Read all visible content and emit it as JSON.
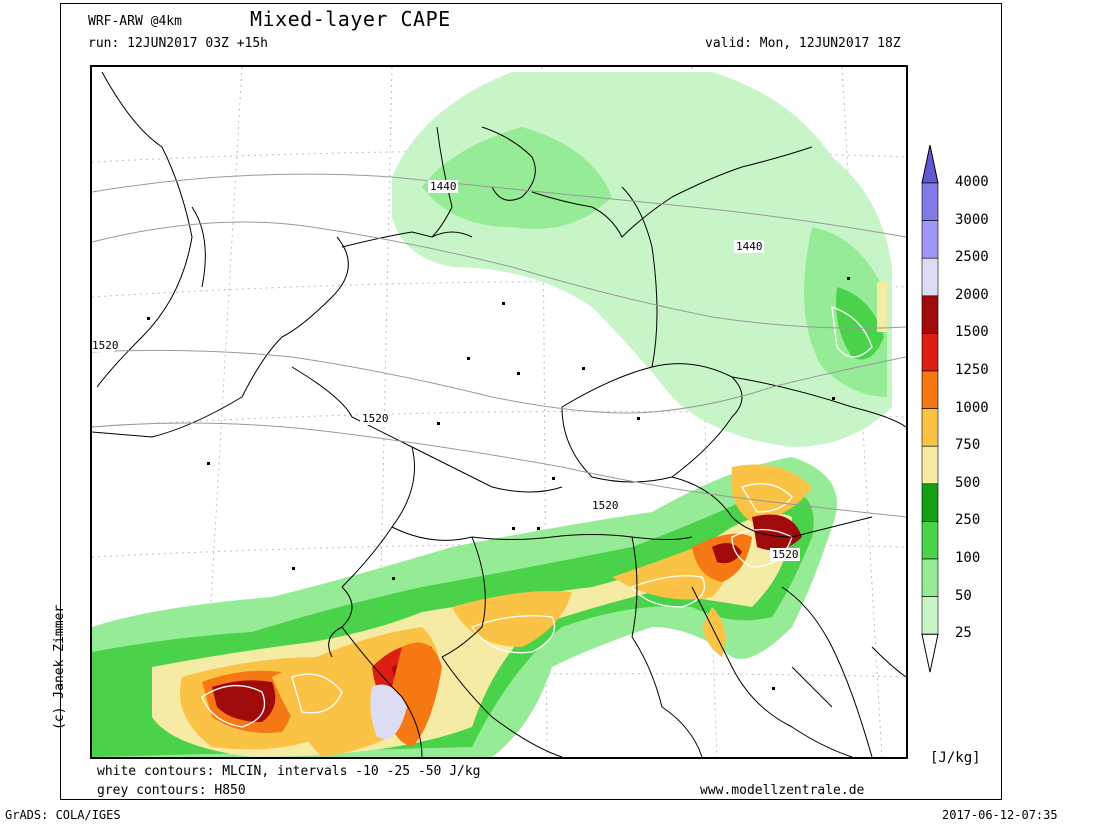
{
  "header": {
    "model": "WRF-ARW @4km",
    "title": "Mixed-layer CAPE",
    "run": "run: 12JUN2017 03Z +15h",
    "valid": "valid: Mon, 12JUN2017 18Z"
  },
  "footer": {
    "white_contours": "white contours: MLCIN, intervals -10 -25 -50 J/kg",
    "grey_contours": "grey contours: H850",
    "website": "www.modellzentrale.de",
    "grads": "GrADS: COLA/IGES",
    "timestamp": "2017-06-12-07:35",
    "copyright": "(c) Janek Zimmer"
  },
  "colorbar": {
    "unit": "[J/kg]",
    "levels": [
      "25",
      "50",
      "100",
      "250",
      "500",
      "750",
      "1000",
      "1250",
      "1500",
      "2000",
      "2500",
      "3000",
      "4000"
    ],
    "colors": [
      "#ffffff",
      "#c8f5c8",
      "#96eb96",
      "#4bd24b",
      "#14a014",
      "#f5eba5",
      "#fac346",
      "#f57814",
      "#dc1e14",
      "#a00a0a",
      "#dcdcf5",
      "#a096f5",
      "#8278e6",
      "#5f5ad2"
    ]
  },
  "contours": {
    "h850_labels": [
      "1440",
      "1440",
      "1520",
      "1520",
      "1520",
      "1520"
    ]
  }
}
